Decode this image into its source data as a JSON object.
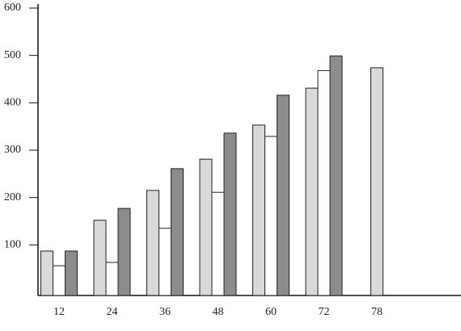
{
  "chart_data": {
    "type": "bar",
    "categories": [
      "12",
      "24",
      "36",
      "48",
      "60",
      "72",
      "78"
    ],
    "series": [
      {
        "color": "#d9d9d9",
        "values": [
          87,
          152,
          215,
          281,
          353,
          431,
          474
        ]
      },
      {
        "color": "#ffffff",
        "values": [
          56,
          63,
          135,
          211,
          329,
          468,
          null
        ]
      },
      {
        "color": "#8c8c8c",
        "values": [
          87,
          177,
          261,
          336,
          416,
          499,
          null
        ]
      }
    ],
    "ylim": [
      0,
      600
    ],
    "yticks": [
      100,
      200,
      300,
      400,
      500,
      600
    ],
    "grid": false
  }
}
